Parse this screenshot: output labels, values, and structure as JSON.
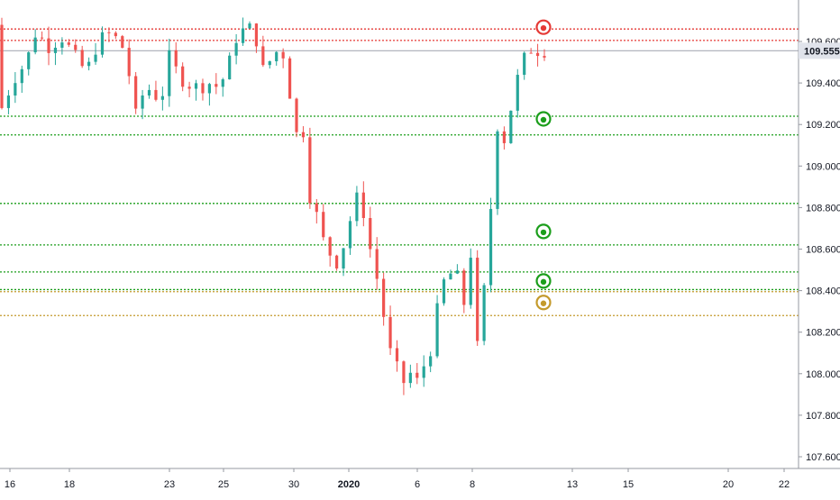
{
  "chart_data": {
    "type": "candlestick",
    "title": "",
    "instrument_hint": "",
    "current_price": "109.555",
    "y_axis": {
      "ticks": [
        "109.600",
        "109.400",
        "109.200",
        "109.000",
        "108.800",
        "108.600",
        "108.400",
        "108.200",
        "108.000",
        "107.800",
        "107.600"
      ],
      "range": [
        107.55,
        109.75
      ]
    },
    "x_axis": {
      "ticks": [
        {
          "label": "16",
          "bold": false
        },
        {
          "label": "18",
          "bold": false
        },
        {
          "label": "23",
          "bold": false
        },
        {
          "label": "25",
          "bold": false
        },
        {
          "label": "30",
          "bold": false
        },
        {
          "label": "2020",
          "bold": true
        },
        {
          "label": "6",
          "bold": false
        },
        {
          "label": "8",
          "bold": false
        },
        {
          "label": "13",
          "bold": false
        },
        {
          "label": "15",
          "bold": false
        },
        {
          "label": "20",
          "bold": false
        },
        {
          "label": "22",
          "bold": false
        }
      ]
    },
    "levels": [
      {
        "price": 109.66,
        "color": "#e53935",
        "style": "dotted",
        "marker": true,
        "kind": "resistance"
      },
      {
        "price": 109.605,
        "color": "#e53935",
        "style": "dotted",
        "marker": false,
        "kind": "resistance"
      },
      {
        "price": 109.555,
        "color": "#b2b5be",
        "style": "solid",
        "marker": false,
        "kind": "last-price"
      },
      {
        "price": 109.24,
        "color": "#1b9e1b",
        "style": "dotted",
        "marker": true,
        "kind": "support"
      },
      {
        "price": 109.15,
        "color": "#1b9e1b",
        "style": "dotted",
        "marker": false,
        "kind": "support"
      },
      {
        "price": 108.82,
        "color": "#1b9e1b",
        "style": "dotted",
        "marker": false,
        "kind": "support"
      },
      {
        "price": 108.62,
        "color": "#1b9e1b",
        "style": "dotted",
        "marker": true,
        "kind": "support"
      },
      {
        "price": 108.49,
        "color": "#1b9e1b",
        "style": "dotted",
        "marker": true,
        "kind": "support"
      },
      {
        "price": 108.405,
        "color": "#1b9e1b",
        "style": "dotted",
        "marker": false,
        "kind": "support"
      },
      {
        "price": 108.395,
        "color": "#c49a2c",
        "style": "dotted",
        "marker": true,
        "kind": "support-alt"
      },
      {
        "price": 108.28,
        "color": "#c49a2c",
        "style": "dotted",
        "marker": false,
        "kind": "support-alt"
      }
    ],
    "candle_count": 165,
    "price_path_anchors": [
      [
        0,
        109.68
      ],
      [
        1,
        109.4
      ],
      [
        2,
        109.26
      ],
      [
        4,
        109.3
      ],
      [
        8,
        109.42
      ],
      [
        14,
        109.5
      ],
      [
        18,
        109.64
      ],
      [
        24,
        109.58
      ],
      [
        30,
        109.62
      ],
      [
        36,
        109.52
      ],
      [
        41,
        109.45
      ],
      [
        46,
        109.6
      ],
      [
        52,
        109.64
      ],
      [
        58,
        109.56
      ],
      [
        60,
        109.44
      ],
      [
        63,
        109.24
      ],
      [
        66,
        109.34
      ],
      [
        70,
        109.38
      ],
      [
        74,
        109.3
      ],
      [
        78,
        109.52
      ],
      [
        82,
        109.44
      ],
      [
        86,
        109.4
      ],
      [
        90,
        109.38
      ],
      [
        96,
        109.4
      ],
      [
        100,
        109.38
      ],
      [
        104,
        109.46
      ],
      [
        108,
        109.62
      ],
      [
        112,
        109.66
      ],
      [
        116,
        109.66
      ],
      [
        120,
        109.46
      ],
      [
        124,
        109.52
      ],
      [
        128,
        109.58
      ],
      [
        131,
        109.46
      ],
      [
        134,
        109.14
      ],
      [
        137,
        109.18
      ],
      [
        139,
        109.16
      ],
      [
        141,
        108.86
      ],
      [
        144,
        108.76
      ],
      [
        147,
        108.64
      ],
      [
        150,
        108.58
      ],
      [
        153,
        108.54
      ],
      [
        156,
        108.62
      ],
      [
        159,
        108.74
      ],
      [
        162,
        108.84
      ],
      [
        165,
        108.78
      ],
      [
        168,
        108.6
      ],
      [
        171,
        108.46
      ],
      [
        174,
        108.28
      ],
      [
        177,
        108.1
      ],
      [
        180,
        108.02
      ],
      [
        183,
        107.96
      ],
      [
        186,
        108.0
      ],
      [
        189,
        107.96
      ],
      [
        192,
        108.04
      ],
      [
        195,
        108.12
      ],
      [
        198,
        108.3
      ],
      [
        201,
        108.44
      ],
      [
        204,
        108.48
      ],
      [
        207,
        108.46
      ],
      [
        210,
        108.34
      ],
      [
        213,
        108.58
      ],
      [
        215,
        108.3
      ],
      [
        217,
        107.95
      ],
      [
        219,
        108.4
      ],
      [
        221,
        108.7
      ],
      [
        223,
        108.9
      ],
      [
        225,
        109.2
      ],
      [
        227,
        109.1
      ],
      [
        229,
        109.16
      ],
      [
        232,
        109.34
      ],
      [
        235,
        109.46
      ],
      [
        238,
        109.54
      ],
      [
        241,
        109.58
      ],
      [
        243,
        109.56
      ]
    ]
  }
}
